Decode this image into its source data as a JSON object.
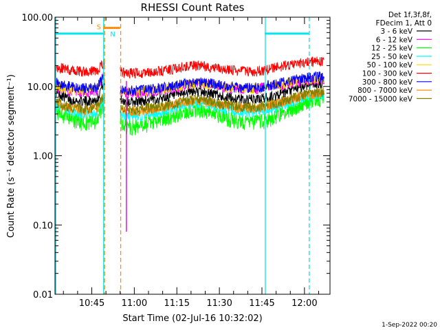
{
  "colors": {
    "background": "#ffffff",
    "axis": "#000000",
    "cyan_marker": "#00e5ee",
    "orange_marker": "#ff7f0e"
  },
  "chart_data": {
    "type": "line",
    "title": "RHESSI Count Rates",
    "xlabel": "Start Time (02-Jul-16 10:32:02)",
    "ylabel": "Count Rate (s⁻¹ detector segment⁻¹)",
    "y_scale": "log",
    "ylim": [
      0.01,
      100
    ],
    "y_ticks": [
      "0.01",
      "0.10",
      "1.00",
      "10.00",
      "100.00"
    ],
    "xlim": [
      "10:32:02",
      "12:09"
    ],
    "x_ticks": [
      "10:45",
      "11:00",
      "11:15",
      "11:30",
      "11:45",
      "12:00"
    ],
    "legend_header": [
      "Det 1f,3f,8f,",
      "FDecim 1, Att 0"
    ],
    "legend_position": "top-right, outside plot",
    "footer": "1-Sep-2022 00:20",
    "x_minutes": [
      32,
      35,
      38,
      41,
      44,
      47,
      49,
      55,
      58,
      61,
      64,
      67,
      70,
      73,
      76,
      79,
      82,
      85,
      88,
      91,
      94,
      97,
      100,
      103,
      106,
      109,
      112,
      115,
      118,
      121,
      124,
      127
    ],
    "series": [
      {
        "name": "3 - 6 keV",
        "color": "#000000",
        "values": [
          8.5,
          7.2,
          6.3,
          6.0,
          6.2,
          6.5,
          11,
          6.5,
          6.0,
          6.0,
          6.3,
          6.5,
          6.8,
          7.2,
          7.8,
          8.3,
          8.5,
          8.2,
          7.8,
          7.2,
          6.8,
          6.6,
          6.5,
          6.5,
          6.8,
          7.2,
          7.8,
          8.5,
          9.5,
          10.5,
          11.0,
          11.2
        ]
      },
      {
        "name": "6 - 12 keV",
        "color": "#ff00ff",
        "values": [
          9.5,
          9.0,
          8.5,
          8.2,
          8.3,
          8.6,
          14,
          8.3,
          8.0,
          8.0,
          8.2,
          8.5,
          8.8,
          9.2,
          9.8,
          10.5,
          11.0,
          10.8,
          10.3,
          9.8,
          9.4,
          9.2,
          9.0,
          9.2,
          9.6,
          10.0,
          10.5,
          11.0,
          11.5,
          12.0,
          12.5,
          12.5
        ]
      },
      {
        "name": "12 - 25 keV",
        "color": "#00ff00",
        "values": [
          4.5,
          3.8,
          3.3,
          3.0,
          3.0,
          3.2,
          5.0,
          2.8,
          2.6,
          2.6,
          2.8,
          3.0,
          3.3,
          3.7,
          4.1,
          4.5,
          4.7,
          4.5,
          4.1,
          3.7,
          3.3,
          3.1,
          3.0,
          3.0,
          3.2,
          3.5,
          4.0,
          4.6,
          5.3,
          6.0,
          6.4,
          6.5
        ]
      },
      {
        "name": "25 - 50 keV",
        "color": "#00ffff",
        "values": [
          5.5,
          4.8,
          4.3,
          4.0,
          4.1,
          4.3,
          6.5,
          3.9,
          3.7,
          3.7,
          3.9,
          4.1,
          4.4,
          4.8,
          5.2,
          5.6,
          5.8,
          5.6,
          5.2,
          4.8,
          4.5,
          4.3,
          4.2,
          4.3,
          4.5,
          4.8,
          5.3,
          5.8,
          6.5,
          7.2,
          7.6,
          7.7
        ]
      },
      {
        "name": "50 - 100 keV",
        "color": "#ffd700",
        "values": [
          10.0,
          9.5,
          9.0,
          8.7,
          8.8,
          9.0,
          14,
          8.7,
          8.4,
          8.4,
          8.6,
          8.9,
          9.2,
          9.6,
          10.2,
          10.8,
          11.2,
          11.0,
          10.5,
          10.0,
          9.6,
          9.4,
          9.3,
          9.4,
          9.8,
          10.2,
          10.8,
          11.4,
          12.0,
          12.6,
          13.0,
          13.0
        ]
      },
      {
        "name": "100 - 300 keV",
        "color": "#ff0000",
        "values": [
          19,
          18,
          17,
          16.5,
          16.5,
          17,
          21,
          16,
          15.5,
          15.5,
          15.8,
          16.3,
          16.8,
          17.5,
          18.5,
          19.5,
          20,
          19.5,
          18.7,
          17.8,
          17.0,
          16.6,
          16.4,
          16.5,
          17.2,
          18.3,
          19.5,
          20.5,
          21.5,
          22.5,
          23,
          22.5
        ]
      },
      {
        "name": "300 - 800 keV",
        "color": "#0000ff",
        "values": [
          11.5,
          10.5,
          9.8,
          9.4,
          9.5,
          9.8,
          13,
          9.0,
          8.7,
          8.7,
          8.9,
          9.2,
          9.6,
          10.0,
          10.6,
          11.2,
          11.5,
          11.3,
          10.8,
          10.2,
          9.8,
          9.6,
          9.5,
          9.6,
          10.0,
          10.5,
          11.2,
          12.0,
          12.8,
          13.5,
          13.8,
          13.5
        ]
      },
      {
        "name": "800 - 7000 keV",
        "color": "#ff8c00",
        "values": [
          5.8,
          5.2,
          4.8,
          4.6,
          4.6,
          4.8,
          7.0,
          4.6,
          4.4,
          4.4,
          4.6,
          4.8,
          5.0,
          5.3,
          5.7,
          6.1,
          6.3,
          6.1,
          5.8,
          5.4,
          5.1,
          4.9,
          4.8,
          4.9,
          5.1,
          5.4,
          5.9,
          6.4,
          7.0,
          7.6,
          8.0,
          8.1
        ]
      },
      {
        "name": "7000 - 15000 keV",
        "color": "#808000",
        "values": [
          6.0,
          5.4,
          5.0,
          4.8,
          4.8,
          5.0,
          7.2,
          4.8,
          4.6,
          4.6,
          4.8,
          5.0,
          5.2,
          5.5,
          5.9,
          6.3,
          6.5,
          6.3,
          6.0,
          5.6,
          5.3,
          5.1,
          5.0,
          5.1,
          5.3,
          5.6,
          6.1,
          6.6,
          7.2,
          7.8,
          8.2,
          8.3
        ]
      }
    ],
    "annotations": [
      {
        "label": "S",
        "color": "#ff8c00",
        "x_start": 49,
        "x_end": 55,
        "level": 70
      },
      {
        "label": "N",
        "color": "#00e5ee",
        "x": 51.5,
        "level": 55
      }
    ],
    "cyan_segments": [
      {
        "x_start": 32,
        "x_end": 49,
        "level": 58
      },
      {
        "x_start": 106,
        "x_end": 121.5,
        "level": 58
      }
    ],
    "vertical_lines": [
      {
        "x": 32.3,
        "color": "#00e5ee",
        "style": "solid"
      },
      {
        "x": 49.2,
        "color": "#00e5ee",
        "style": "solid"
      },
      {
        "x": 49.5,
        "color": "#ff8c00",
        "style": "dashed"
      },
      {
        "x": 55.2,
        "color": "#ff8c00",
        "style": "dashed"
      },
      {
        "x": 106.2,
        "color": "#00e5ee",
        "style": "solid"
      },
      {
        "x": 121.7,
        "color": "#00e5ee",
        "style": "dashed"
      }
    ],
    "dropout": {
      "x": 57.2,
      "min_value": 0.08,
      "color": "#ff00ff"
    }
  }
}
